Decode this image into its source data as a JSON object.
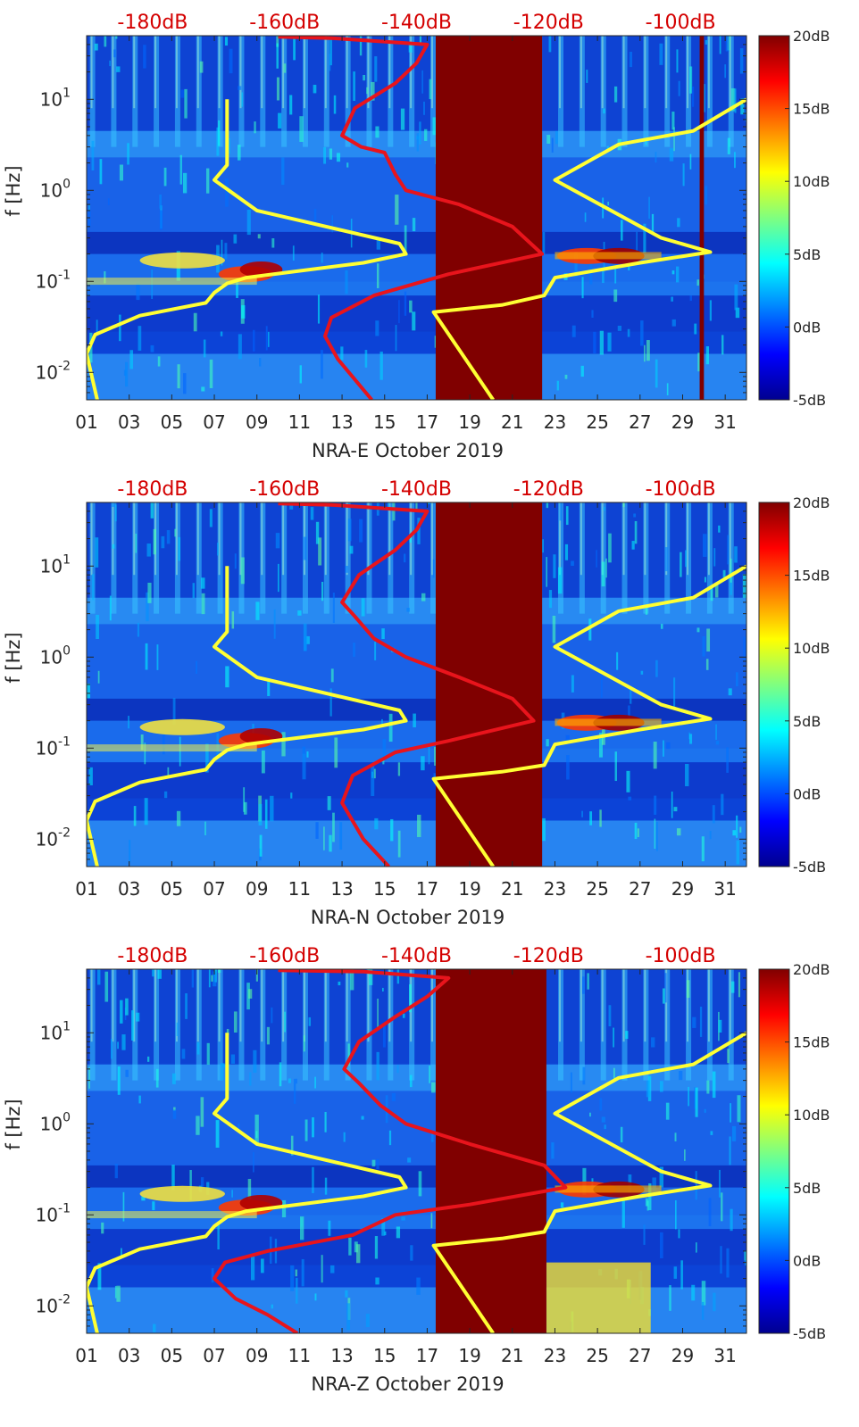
{
  "chart_data": [
    {
      "type": "heatmap",
      "xlabel": "NRA-E October 2019",
      "ylabel": "f [Hz]",
      "x_ticks": [
        "01",
        "03",
        "05",
        "07",
        "09",
        "11",
        "13",
        "15",
        "17",
        "19",
        "21",
        "23",
        "25",
        "27",
        "29",
        "31"
      ],
      "xlim": [
        1,
        32
      ],
      "y_scale": "log",
      "ylim": [
        0.005,
        50
      ],
      "y_ticks": [
        0.01,
        0.1,
        1,
        10
      ],
      "y_tick_labels": [
        "10^-2",
        "10^-1",
        "10^0",
        "10^1"
      ],
      "colorbar": {
        "ticks": [
          "-5dB",
          "0dB",
          "5dB",
          "10dB",
          "15dB",
          "20dB"
        ],
        "values": [
          -5,
          0,
          5,
          10,
          15,
          20
        ],
        "colormap": "jet"
      },
      "top_axis": {
        "ticks": [
          "-180dB",
          "-160dB",
          "-140dB",
          "-120dB",
          "-100dB"
        ],
        "values": [
          -180,
          -160,
          -140,
          -120,
          -100
        ],
        "color": "#d40000"
      },
      "data_gaps": [
        [
          17.4,
          22.4
        ],
        [
          29.8,
          30.0
        ]
      ],
      "gap_color": "#800000",
      "series": [
        {
          "color": "#ffff33",
          "points": [
            [
              1.5,
              0.005
            ],
            [
              1.0,
              0.016
            ],
            [
              1.4,
              0.026
            ],
            [
              3.5,
              0.042
            ],
            [
              6.6,
              0.058
            ],
            [
              7.0,
              0.075
            ],
            [
              7.6,
              0.095
            ],
            [
              8.5,
              0.11
            ],
            [
              14.0,
              0.16
            ],
            [
              16.0,
              0.2
            ],
            [
              15.7,
              0.26
            ],
            [
              9.0,
              0.6
            ],
            [
              7.0,
              1.3
            ],
            [
              7.6,
              1.9
            ],
            [
              7.6,
              10
            ]
          ]
        },
        {
          "color": "#ffff33",
          "points": [
            [
              20.1,
              0.005
            ],
            [
              17.3,
              0.046
            ],
            [
              20.5,
              0.055
            ],
            [
              22.5,
              0.07
            ],
            [
              23.0,
              0.11
            ],
            [
              27.0,
              0.16
            ],
            [
              30.3,
              0.21
            ],
            [
              28.0,
              0.3
            ],
            [
              23.0,
              1.3
            ],
            [
              26.0,
              3.2
            ],
            [
              29.5,
              4.5
            ],
            [
              32.0,
              10
            ]
          ]
        },
        {
          "color": "#e8141c",
          "points": [
            [
              14.4,
              0.005
            ],
            [
              12.8,
              0.014
            ],
            [
              12.2,
              0.025
            ],
            [
              12.5,
              0.04
            ],
            [
              14.5,
              0.07
            ],
            [
              18.0,
              0.12
            ],
            [
              22.4,
              0.2
            ],
            [
              21.0,
              0.4
            ],
            [
              18.5,
              0.7
            ],
            [
              16.0,
              1.0
            ],
            [
              15.5,
              1.5
            ],
            [
              15.0,
              2.6
            ],
            [
              13.9,
              3.0
            ],
            [
              13.0,
              4.0
            ],
            [
              13.6,
              8.0
            ],
            [
              15.5,
              15.0
            ],
            [
              16.5,
              25.0
            ],
            [
              17.0,
              40.0
            ],
            [
              12.5,
              47.0
            ],
            [
              10.0,
              48.5
            ]
          ]
        }
      ]
    },
    {
      "type": "heatmap",
      "xlabel": "NRA-N October 2019",
      "ylabel": "f [Hz]",
      "x_ticks": [
        "01",
        "03",
        "05",
        "07",
        "09",
        "11",
        "13",
        "15",
        "17",
        "19",
        "21",
        "23",
        "25",
        "27",
        "29",
        "31"
      ],
      "xlim": [
        1,
        32
      ],
      "y_scale": "log",
      "ylim": [
        0.005,
        50
      ],
      "y_ticks": [
        0.01,
        0.1,
        1,
        10
      ],
      "y_tick_labels": [
        "10^-2",
        "10^-1",
        "10^0",
        "10^1"
      ],
      "colorbar": {
        "ticks": [
          "-5dB",
          "0dB",
          "5dB",
          "10dB",
          "15dB",
          "20dB"
        ],
        "values": [
          -5,
          0,
          5,
          10,
          15,
          20
        ],
        "colormap": "jet"
      },
      "top_axis": {
        "ticks": [
          "-180dB",
          "-160dB",
          "-140dB",
          "-120dB",
          "-100dB"
        ],
        "values": [
          -180,
          -160,
          -140,
          -120,
          -100
        ],
        "color": "#d40000"
      },
      "data_gaps": [
        [
          17.4,
          22.4
        ]
      ],
      "gap_color": "#800000",
      "series": [
        {
          "color": "#ffff33",
          "points": [
            [
              1.5,
              0.005
            ],
            [
              1.0,
              0.016
            ],
            [
              1.4,
              0.026
            ],
            [
              3.5,
              0.042
            ],
            [
              6.6,
              0.058
            ],
            [
              7.0,
              0.075
            ],
            [
              7.6,
              0.095
            ],
            [
              8.5,
              0.11
            ],
            [
              14.0,
              0.16
            ],
            [
              16.0,
              0.2
            ],
            [
              15.7,
              0.26
            ],
            [
              9.0,
              0.6
            ],
            [
              7.0,
              1.3
            ],
            [
              7.6,
              1.9
            ],
            [
              7.6,
              10
            ]
          ]
        },
        {
          "color": "#ffff33",
          "points": [
            [
              20.1,
              0.005
            ],
            [
              17.3,
              0.046
            ],
            [
              20.5,
              0.055
            ],
            [
              22.5,
              0.065
            ],
            [
              23.0,
              0.11
            ],
            [
              27.0,
              0.16
            ],
            [
              30.3,
              0.21
            ],
            [
              28.0,
              0.3
            ],
            [
              23.0,
              1.3
            ],
            [
              26.0,
              3.2
            ],
            [
              29.5,
              4.5
            ],
            [
              32.0,
              10
            ]
          ]
        },
        {
          "color": "#e8141c",
          "points": [
            [
              15.2,
              0.005
            ],
            [
              14.0,
              0.01
            ],
            [
              13.0,
              0.025
            ],
            [
              13.5,
              0.05
            ],
            [
              15.5,
              0.09
            ],
            [
              18.0,
              0.12
            ],
            [
              22.0,
              0.2
            ],
            [
              21.0,
              0.35
            ],
            [
              18.5,
              0.6
            ],
            [
              16.0,
              1.0
            ],
            [
              14.5,
              1.6
            ],
            [
              13.6,
              2.8
            ],
            [
              13.0,
              4.0
            ],
            [
              13.8,
              8.0
            ],
            [
              15.5,
              15.0
            ],
            [
              16.5,
              25.0
            ],
            [
              17.0,
              40.0
            ],
            [
              12.5,
              47.0
            ],
            [
              10.0,
              48.5
            ]
          ]
        }
      ]
    },
    {
      "type": "heatmap",
      "xlabel": "NRA-Z October 2019",
      "ylabel": "f [Hz]",
      "x_ticks": [
        "01",
        "03",
        "05",
        "07",
        "09",
        "11",
        "13",
        "15",
        "17",
        "19",
        "21",
        "23",
        "25",
        "27",
        "29",
        "31"
      ],
      "xlim": [
        1,
        32
      ],
      "y_scale": "log",
      "ylim": [
        0.005,
        50
      ],
      "y_ticks": [
        0.01,
        0.1,
        1,
        10
      ],
      "y_tick_labels": [
        "10^-2",
        "10^-1",
        "10^0",
        "10^1"
      ],
      "colorbar": {
        "ticks": [
          "-5dB",
          "0dB",
          "5dB",
          "10dB",
          "15dB",
          "20dB"
        ],
        "values": [
          -5,
          0,
          5,
          10,
          15,
          20
        ],
        "colormap": "jet"
      },
      "top_axis": {
        "ticks": [
          "-180dB",
          "-160dB",
          "-140dB",
          "-120dB",
          "-100dB"
        ],
        "values": [
          -180,
          -160,
          -140,
          -120,
          -100
        ],
        "color": "#d40000"
      },
      "data_gaps": [
        [
          17.4,
          22.6
        ]
      ],
      "gap_color": "#800000",
      "series": [
        {
          "color": "#ffff33",
          "points": [
            [
              1.5,
              0.005
            ],
            [
              1.0,
              0.016
            ],
            [
              1.4,
              0.026
            ],
            [
              3.5,
              0.042
            ],
            [
              6.6,
              0.058
            ],
            [
              7.0,
              0.075
            ],
            [
              7.6,
              0.095
            ],
            [
              8.5,
              0.11
            ],
            [
              14.0,
              0.16
            ],
            [
              16.0,
              0.2
            ],
            [
              15.7,
              0.26
            ],
            [
              9.0,
              0.6
            ],
            [
              7.0,
              1.3
            ],
            [
              7.6,
              1.9
            ],
            [
              7.6,
              10
            ]
          ]
        },
        {
          "color": "#ffff33",
          "points": [
            [
              20.1,
              0.005
            ],
            [
              17.3,
              0.046
            ],
            [
              20.5,
              0.055
            ],
            [
              22.5,
              0.065
            ],
            [
              23.0,
              0.11
            ],
            [
              27.0,
              0.16
            ],
            [
              30.3,
              0.21
            ],
            [
              28.0,
              0.3
            ],
            [
              23.0,
              1.3
            ],
            [
              26.0,
              3.2
            ],
            [
              29.5,
              4.5
            ],
            [
              32.0,
              10
            ]
          ]
        },
        {
          "color": "#e8141c",
          "points": [
            [
              10.9,
              0.005
            ],
            [
              9.5,
              0.008
            ],
            [
              8.0,
              0.012
            ],
            [
              7.0,
              0.02
            ],
            [
              7.5,
              0.03
            ],
            [
              9.5,
              0.04
            ],
            [
              13.5,
              0.06
            ],
            [
              15.5,
              0.1
            ],
            [
              19.0,
              0.13
            ],
            [
              23.5,
              0.2
            ],
            [
              22.5,
              0.35
            ],
            [
              19.0,
              0.6
            ],
            [
              16.0,
              1.0
            ],
            [
              14.8,
              1.6
            ],
            [
              13.8,
              2.8
            ],
            [
              13.1,
              4.0
            ],
            [
              13.8,
              8.0
            ],
            [
              15.5,
              15.0
            ],
            [
              17.0,
              25.0
            ],
            [
              18.0,
              40.0
            ],
            [
              14.0,
              47.0
            ],
            [
              10.0,
              48.5
            ]
          ]
        }
      ]
    }
  ]
}
